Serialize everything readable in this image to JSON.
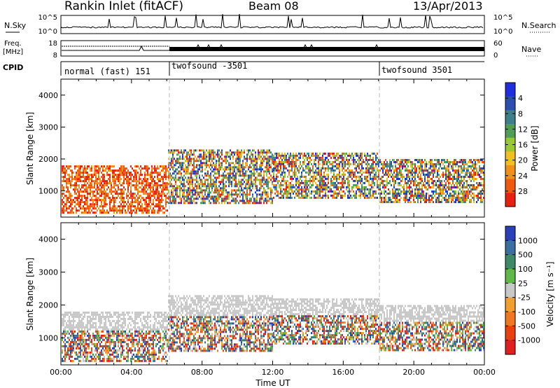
{
  "header": {
    "station": "Rankin Inlet (fitACF)",
    "beam": "Beam 08",
    "date": "13/Apr/2013"
  },
  "strip_labels": {
    "nsky": "N.Sky",
    "freq_line1": "Freq.",
    "freq_line2": "[MHz]",
    "cpid": "CPID",
    "nsearch": "N.Search",
    "nave": "Nave",
    "nsky_top": "10^5",
    "nsky_bot": "10^0",
    "nsearch_top": "10^5",
    "nsearch_bot": "10^0",
    "freq_top": "18",
    "freq_bot": "8",
    "nave_top": "60",
    "nave_bot": "0"
  },
  "cpid_segments": [
    {
      "label": "normal (fast) 151",
      "start_hour": 0
    },
    {
      "label": "twofsound -3501",
      "start_hour": 6
    },
    {
      "label": "twofsound 3501",
      "start_hour": 18
    }
  ],
  "chart_data": [
    {
      "type": "heatmap",
      "title": "",
      "xlabel": "Time UT",
      "ylabel": "Slant Range [km]",
      "xlim": [
        0,
        24
      ],
      "ylim": [
        180,
        4500
      ],
      "x_ticks": [
        "00:00",
        "04:00",
        "08:00",
        "12:00",
        "16:00",
        "20:00",
        "00:00"
      ],
      "y_ticks": [
        1000,
        2000,
        3000,
        4000
      ],
      "colorbar": {
        "label": "Power [dB]",
        "ticks": [
          "4",
          "8",
          "12",
          "16",
          "20",
          "24",
          "28"
        ],
        "colors": [
          "#1f2fe0",
          "#2b4fae",
          "#3d7f8a",
          "#4f9e58",
          "#98c832",
          "#f0c020",
          "#f09018",
          "#f05a10",
          "#e82010"
        ]
      }
    },
    {
      "type": "heatmap",
      "title": "",
      "xlabel": "Time UT",
      "ylabel": "Slant Range [km]",
      "xlim": [
        0,
        24
      ],
      "ylim": [
        180,
        4500
      ],
      "x_ticks": [
        "00:00",
        "04:00",
        "08:00",
        "12:00",
        "16:00",
        "20:00",
        "00:00"
      ],
      "y_ticks": [
        1000,
        2000,
        3000,
        4000
      ],
      "colorbar": {
        "label": "Velocity [m s⁻¹]",
        "ticks": [
          "1000",
          "500",
          "100",
          "25",
          "-25",
          "-100",
          "-500",
          "-1000"
        ],
        "colors": [
          "#2840b8",
          "#3a70a0",
          "#3e8a68",
          "#5fb848",
          "#c8c8c8",
          "#f0a030",
          "#f07820",
          "#e84010",
          "#e02020"
        ]
      }
    }
  ]
}
